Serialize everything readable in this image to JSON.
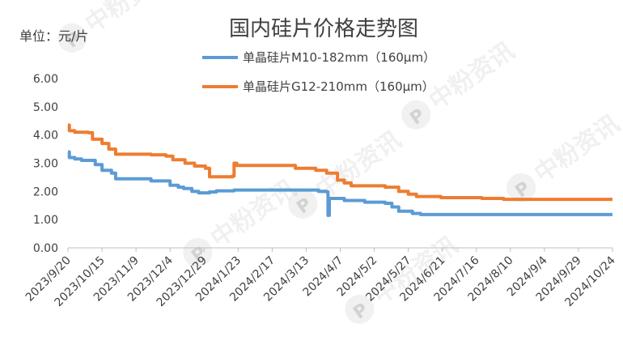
{
  "chart_data": {
    "type": "line",
    "title": "国内硅片价格走势图",
    "unit_label": "单位：元/片",
    "ylim": [
      0,
      6.0
    ],
    "yticks": [
      "0.00",
      "1.00",
      "2.00",
      "3.00",
      "4.00",
      "5.00",
      "6.00"
    ],
    "xlim": [
      "2023-09-20",
      "2024-10-24"
    ],
    "xticks": [
      "2023/9/20",
      "2023/10/15",
      "2023/11/9",
      "2023/12/4",
      "2023/12/29",
      "2024/1/23",
      "2024/2/17",
      "2024/3/13",
      "2024/4/7",
      "2024/5/2",
      "2024/5/27",
      "2024/6/21",
      "2024/7/16",
      "2024/8/10",
      "2024/9/4",
      "2024/9/29",
      "2024/10/24"
    ],
    "grid": false,
    "legend": "top",
    "series": [
      {
        "name": "单晶硅片M10-182mm（160μm）",
        "color": "#5B9BD5",
        "points": [
          [
            "2023-09-20",
            3.4
          ],
          [
            "2023-09-21",
            3.2
          ],
          [
            "2023-09-25",
            3.15
          ],
          [
            "2023-09-30",
            3.1
          ],
          [
            "2023-10-10",
            2.95
          ],
          [
            "2023-10-15",
            2.75
          ],
          [
            "2023-10-22",
            2.65
          ],
          [
            "2023-10-25",
            2.45
          ],
          [
            "2023-11-20",
            2.37
          ],
          [
            "2023-12-04",
            2.22
          ],
          [
            "2023-12-10",
            2.15
          ],
          [
            "2023-12-14",
            2.1
          ],
          [
            "2023-12-20",
            2.0
          ],
          [
            "2023-12-25",
            1.95
          ],
          [
            "2024-01-02",
            1.98
          ],
          [
            "2024-01-07",
            2.02
          ],
          [
            "2024-01-20",
            2.05
          ],
          [
            "2024-03-20",
            2.05
          ],
          [
            "2024-03-22",
            2.0
          ],
          [
            "2024-03-28",
            1.98
          ],
          [
            "2024-03-29",
            1.15
          ],
          [
            "2024-03-30",
            1.75
          ],
          [
            "2024-04-10",
            1.68
          ],
          [
            "2024-04-25",
            1.62
          ],
          [
            "2024-05-10",
            1.58
          ],
          [
            "2024-05-15",
            1.45
          ],
          [
            "2024-05-20",
            1.3
          ],
          [
            "2024-05-30",
            1.22
          ],
          [
            "2024-06-05",
            1.18
          ],
          [
            "2024-10-24",
            1.18
          ]
        ]
      },
      {
        "name": "单晶硅片G12-210mm（160μm）",
        "color": "#ED7D31",
        "points": [
          [
            "2023-09-20",
            4.35
          ],
          [
            "2023-09-21",
            4.15
          ],
          [
            "2023-09-25",
            4.1
          ],
          [
            "2023-10-05",
            4.08
          ],
          [
            "2023-10-08",
            3.85
          ],
          [
            "2023-10-15",
            3.7
          ],
          [
            "2023-10-20",
            3.5
          ],
          [
            "2023-10-25",
            3.32
          ],
          [
            "2023-11-20",
            3.3
          ],
          [
            "2023-12-01",
            3.25
          ],
          [
            "2023-12-06",
            3.12
          ],
          [
            "2023-12-15",
            3.0
          ],
          [
            "2023-12-22",
            2.9
          ],
          [
            "2023-12-30",
            2.82
          ],
          [
            "2024-01-02",
            2.52
          ],
          [
            "2024-01-19",
            2.55
          ],
          [
            "2024-01-20",
            3.0
          ],
          [
            "2024-01-22",
            2.92
          ],
          [
            "2024-03-01",
            2.92
          ],
          [
            "2024-03-05",
            2.82
          ],
          [
            "2024-03-20",
            2.75
          ],
          [
            "2024-03-28",
            2.65
          ],
          [
            "2024-04-05",
            2.4
          ],
          [
            "2024-04-10",
            2.3
          ],
          [
            "2024-04-15",
            2.2
          ],
          [
            "2024-05-10",
            2.15
          ],
          [
            "2024-05-20",
            2.0
          ],
          [
            "2024-05-27",
            1.9
          ],
          [
            "2024-06-02",
            1.82
          ],
          [
            "2024-06-20",
            1.78
          ],
          [
            "2024-07-20",
            1.75
          ],
          [
            "2024-08-05",
            1.72
          ],
          [
            "2024-10-24",
            1.72
          ]
        ]
      }
    ]
  },
  "watermark": {
    "text": "中粉资讯",
    "badge_letter": "P"
  }
}
